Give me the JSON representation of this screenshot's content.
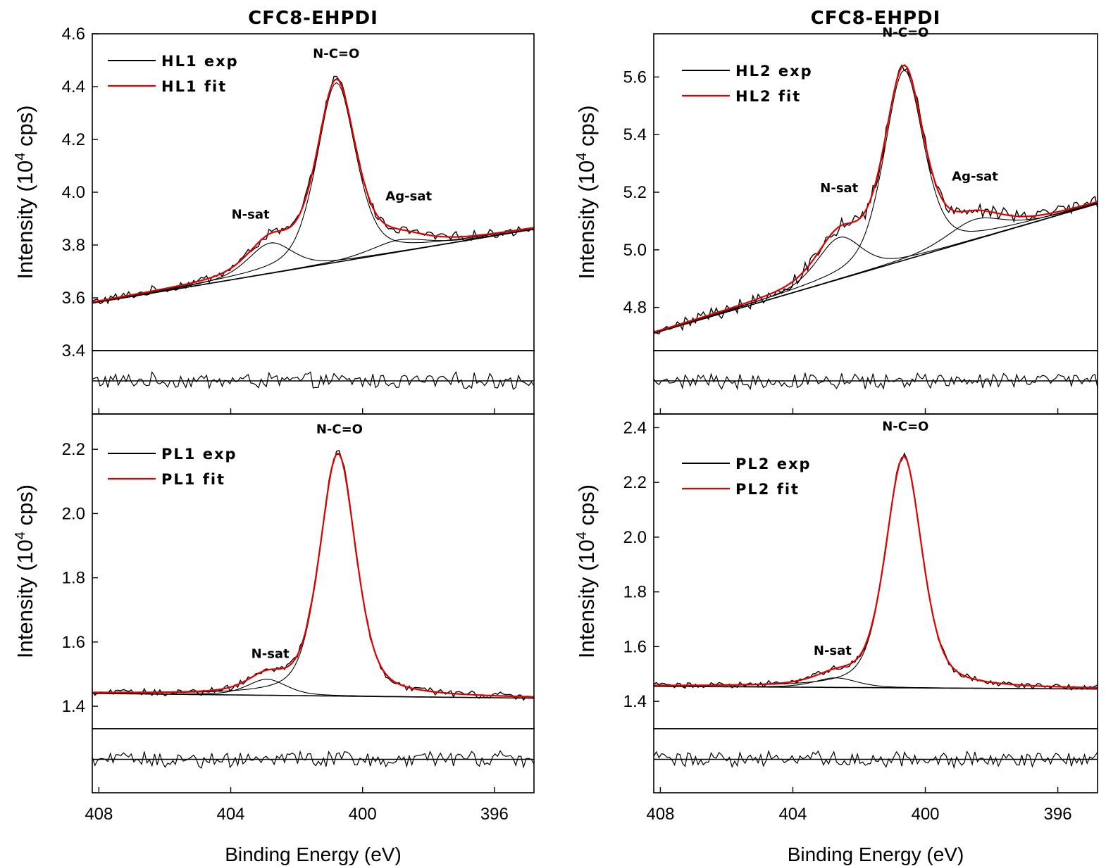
{
  "chart_data": [
    {
      "id": "HL1",
      "type": "line",
      "title": "CFC8-EHPDI",
      "xlabel": "Binding Energy (eV)",
      "ylabel": "Intensity (10",
      "ylabel_sup": "4",
      "ylabel_tail": " cps)",
      "xlim": [
        408.2,
        394.8
      ],
      "ylim": [
        3.4,
        4.6
      ],
      "yticks": [
        3.4,
        3.6,
        3.8,
        4.0,
        4.2,
        4.4,
        4.6
      ],
      "ytick_labels": [
        "3.4",
        "3.6",
        "3.8",
        "4.0",
        "4.2",
        "4.4",
        "4.6"
      ],
      "xticks": [
        408,
        404,
        400,
        396
      ],
      "xtick_labels": [
        "408",
        "404",
        "400",
        "396"
      ],
      "legend": [
        "HL1 exp",
        "HL1 fit"
      ],
      "annotations": [
        {
          "text": "N-C=O",
          "x": 400.8,
          "y": 4.51
        },
        {
          "text": "N-sat",
          "x": 403.4,
          "y": 3.9
        },
        {
          "text": "Ag-sat",
          "x": 398.6,
          "y": 3.97
        }
      ],
      "background": {
        "x": [
          408.2,
          394.8
        ],
        "y": [
          3.58,
          3.86
        ]
      },
      "peaks": [
        {
          "name": "N-C=O",
          "center": 400.8,
          "height": 0.68,
          "fwhm": 1.4
        },
        {
          "name": "N-sat",
          "center": 402.8,
          "height": 0.115,
          "fwhm": 1.6
        },
        {
          "name": "Ag-sat",
          "center": 398.9,
          "height": 0.045,
          "fwhm": 2.0
        }
      ],
      "noise_amplitude": 0.016,
      "residual_noise": 0.1
    },
    {
      "id": "HL2",
      "type": "line",
      "title": "CFC8-EHPDI",
      "xlabel": "Binding Energy (eV)",
      "ylabel": "Intensity (10",
      "ylabel_sup": "4",
      "ylabel_tail": " cps)",
      "xlim": [
        408.2,
        394.8
      ],
      "ylim": [
        4.65,
        5.75
      ],
      "yticks": [
        4.8,
        5.0,
        5.2,
        5.4,
        5.6
      ],
      "ytick_labels": [
        "4.8",
        "5.0",
        "5.2",
        "5.4",
        "5.6"
      ],
      "xticks": [
        408,
        404,
        400,
        396
      ],
      "xtick_labels": [
        "408",
        "404",
        "400",
        "396"
      ],
      "legend": [
        "HL2 exp",
        "HL2 fit"
      ],
      "annotations": [
        {
          "text": "N-C=O",
          "x": 400.6,
          "y": 5.74
        },
        {
          "text": "N-sat",
          "x": 402.6,
          "y": 5.2
        },
        {
          "text": "Ag-sat",
          "x": 398.5,
          "y": 5.24
        }
      ],
      "background": {
        "x": [
          408.2,
          394.8
        ],
        "y": [
          4.71,
          5.16
        ]
      },
      "peaks": [
        {
          "name": "N-C=O",
          "center": 400.65,
          "height": 0.66,
          "fwhm": 1.4
        },
        {
          "name": "N-sat",
          "center": 402.6,
          "height": 0.145,
          "fwhm": 1.6
        },
        {
          "name": "Ag-sat",
          "center": 398.5,
          "height": 0.07,
          "fwhm": 2.0
        }
      ],
      "noise_amplitude": 0.022,
      "residual_noise": 0.1
    },
    {
      "id": "PL1",
      "type": "line",
      "title": "",
      "xlabel": "Binding Energy (eV)",
      "ylabel": "Intensity (10",
      "ylabel_sup": "4",
      "ylabel_tail": " cps)",
      "xlim": [
        408.2,
        394.8
      ],
      "ylim": [
        1.33,
        2.31
      ],
      "yticks": [
        1.4,
        1.6,
        1.8,
        2.0,
        2.2
      ],
      "ytick_labels": [
        "1.4",
        "1.6",
        "1.8",
        "2.0",
        "2.2"
      ],
      "xticks": [
        408,
        404,
        400,
        396
      ],
      "xtick_labels": [
        "408",
        "404",
        "400",
        "396"
      ],
      "legend": [
        "PL1 exp",
        "PL1 fit"
      ],
      "annotations": [
        {
          "text": "N-C=O",
          "x": 400.7,
          "y": 2.25
        },
        {
          "text": "N-sat",
          "x": 402.8,
          "y": 1.55
        }
      ],
      "background": {
        "x": [
          408.2,
          394.8
        ],
        "y": [
          1.44,
          1.425
        ]
      },
      "peaks": [
        {
          "name": "N-C=O",
          "center": 400.75,
          "height": 0.755,
          "fwhm": 1.3
        },
        {
          "name": "N-sat",
          "center": 402.9,
          "height": 0.05,
          "fwhm": 1.4
        }
      ],
      "noise_amplitude": 0.01,
      "residual_noise": 0.1
    },
    {
      "id": "PL2",
      "type": "line",
      "title": "",
      "xlabel": "Binding Energy (eV)",
      "ylabel": "Intensity (10",
      "ylabel_sup": "4",
      "ylabel_tail": " cps)",
      "xlim": [
        408.2,
        394.8
      ],
      "ylim": [
        1.3,
        2.45
      ],
      "yticks": [
        1.4,
        1.6,
        1.8,
        2.0,
        2.2,
        2.4
      ],
      "ytick_labels": [
        "1.4",
        "1.6",
        "1.8",
        "2.0",
        "2.2",
        "2.4"
      ],
      "xticks": [
        408,
        404,
        400,
        396
      ],
      "xtick_labels": [
        "408",
        "404",
        "400",
        "396"
      ],
      "legend": [
        "PL2 exp",
        "PL2 fit"
      ],
      "annotations": [
        {
          "text": "N-C=O",
          "x": 400.6,
          "y": 2.39
        },
        {
          "text": "N-sat",
          "x": 402.8,
          "y": 1.57
        }
      ],
      "background": {
        "x": [
          408.2,
          394.8
        ],
        "y": [
          1.455,
          1.445
        ]
      },
      "peaks": [
        {
          "name": "N-C=O",
          "center": 400.65,
          "height": 0.845,
          "fwhm": 1.3
        },
        {
          "name": "N-sat",
          "center": 402.7,
          "height": 0.035,
          "fwhm": 1.5
        }
      ],
      "noise_amplitude": 0.01,
      "residual_noise": 0.1
    }
  ],
  "colors": {
    "experiment": "#000000",
    "fit": "#e00000",
    "axis": "#000000"
  }
}
